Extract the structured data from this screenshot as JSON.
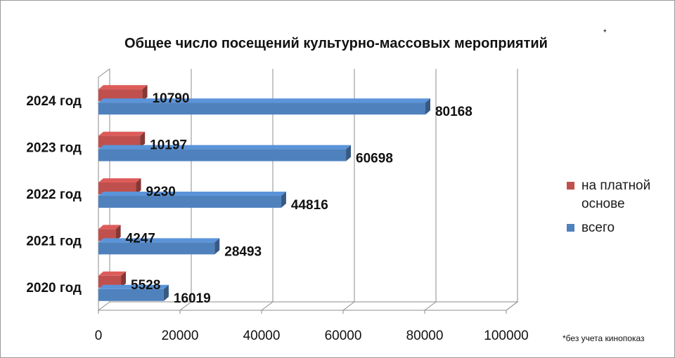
{
  "chart_data": {
    "type": "bar",
    "orientation": "horizontal",
    "title": "Общее число посещений культурно-массовых мероприятий",
    "title_mark": "*",
    "categories": [
      "2020 год",
      "2021 год",
      "2022 год",
      "2023 год",
      "2024 год"
    ],
    "series": [
      {
        "name": "на платной основе",
        "values": [
          5528,
          4247,
          9230,
          10197,
          10790
        ],
        "color": "#c0504d"
      },
      {
        "name": "всего",
        "values": [
          16019,
          28493,
          44816,
          60698,
          80168
        ],
        "color": "#4f81bd"
      }
    ],
    "xlim": [
      0,
      100000
    ],
    "ticks": [
      "0",
      "20000",
      "40000",
      "60000",
      "80000",
      "100000"
    ],
    "grid": true,
    "legend_position": "right",
    "footnote": "*без учета кинопоказ"
  }
}
